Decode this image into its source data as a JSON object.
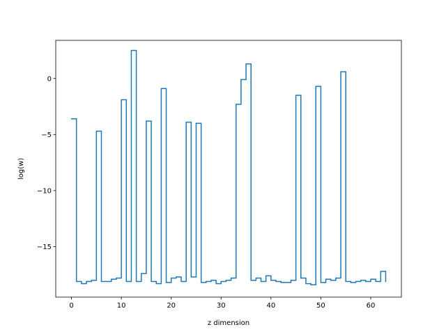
{
  "chart_data": {
    "type": "line",
    "drawstyle": "steps-post",
    "title": "",
    "xlabel": "z dimension",
    "ylabel": "log(w)",
    "xlim": [
      -3.15,
      66.15
    ],
    "ylim": [
      -19.5,
      3.4
    ],
    "x_ticks": [
      0,
      10,
      20,
      30,
      40,
      50,
      60
    ],
    "x_tick_labels": [
      "0",
      "10",
      "20",
      "30",
      "40",
      "50",
      "60"
    ],
    "y_ticks": [
      -15,
      -10,
      -5,
      0
    ],
    "y_tick_labels": [
      "−15",
      "−10",
      "−5",
      "0"
    ],
    "grid": false,
    "legend": "none",
    "series": [
      {
        "color": "#1f77b4",
        "x": [
          0,
          1,
          2,
          3,
          4,
          5,
          6,
          7,
          8,
          9,
          10,
          11,
          12,
          13,
          14,
          15,
          16,
          17,
          18,
          19,
          20,
          21,
          22,
          23,
          24,
          25,
          26,
          27,
          28,
          29,
          30,
          31,
          32,
          33,
          34,
          35,
          36,
          37,
          38,
          39,
          40,
          41,
          42,
          43,
          44,
          45,
          46,
          47,
          48,
          49,
          50,
          51,
          52,
          53,
          54,
          55,
          56,
          57,
          58,
          59,
          60,
          61,
          62,
          63
        ],
        "values": [
          -3.6,
          -18.1,
          -18.3,
          -18.1,
          -18.0,
          -4.7,
          -18.1,
          -18.1,
          -17.9,
          -17.8,
          -1.9,
          -18.1,
          2.5,
          -18.1,
          -17.4,
          -3.8,
          -18.1,
          -18.3,
          -0.9,
          -18.2,
          -17.8,
          -17.7,
          -18.1,
          -3.9,
          -17.7,
          -4.0,
          -18.2,
          -18.1,
          -18.0,
          -18.3,
          -18.1,
          -18.0,
          -17.8,
          -2.3,
          -0.1,
          1.3,
          -18.0,
          -17.8,
          -18.1,
          -17.6,
          -18.0,
          -18.1,
          -18.2,
          -18.2,
          -18.0,
          -1.5,
          -17.8,
          -18.3,
          -18.4,
          -0.7,
          -18.2,
          -17.9,
          -18.0,
          -17.8,
          0.6,
          -18.1,
          -18.2,
          -18.1,
          -18.0,
          -18.1,
          -17.9,
          -18.1,
          -17.2,
          -18.1
        ]
      }
    ]
  }
}
